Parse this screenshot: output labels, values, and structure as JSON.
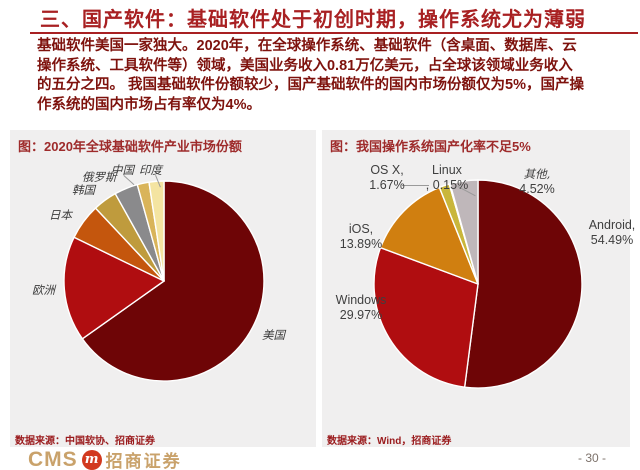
{
  "page": {
    "title": "三、国产软件：基础软件处于初创时期，操作系统尤为薄弱",
    "page_number": "- 30 -"
  },
  "intro": {
    "lines": [
      "基础软件美国一家独大。2020年，在全球操作系统、基础软件（含桌面、数据库、云",
      "操作系统、工具软件等）领域，美国业务收入0.81万亿美元，占全球该领域业务收入",
      "的五分之四。 我国基础软件份额较少，国产基础软件的国内市场份额仅为5%，国产操",
      "作系统的国内市场占有率仅为4%。"
    ]
  },
  "panels": {
    "left": {
      "title": "图：2020年全球基础软件产业市场份额",
      "source": "数据来源：中国软协、招商证券"
    },
    "right": {
      "title": "图：我国操作系统国产化率不足5%",
      "source": "数据来源：Wind，招商证券"
    }
  },
  "footer": {
    "cms": "CMS",
    "logo_glyph": "m",
    "brand": "招商证券"
  },
  "colors": {
    "accent_red": "#A82022",
    "body_text_red": "#7E120D",
    "panel_bg": "#F0EFEF",
    "source_red": "#9A1A1C",
    "brand_gold": "#C9A26B",
    "logo_circle_red": "#D2391F",
    "page_number_gray": "#7d726b"
  },
  "chart_data": [
    {
      "type": "pie",
      "title": "图：2020年全球基础软件产业市场份额",
      "categories": [
        "美国",
        "欧洲",
        "日本",
        "韩国",
        "俄罗斯",
        "中国",
        "印度"
      ],
      "values": [
        65.2,
        17.0,
        5.8,
        3.9,
        3.8,
        1.9,
        2.4
      ],
      "values_note": "percentages not printed on chart; estimated from slice angles",
      "colors": [
        "#6E0506",
        "#B00D10",
        "#C4560D",
        "#BF9B3D",
        "#8A8A8C",
        "#D9B45A",
        "#F4E4A1"
      ],
      "legend_position": "none",
      "labels_on_chart": true,
      "start_angle": "12 o'clock, clockwise"
    },
    {
      "type": "pie",
      "title": "图：我国操作系统国产化率不足5%",
      "categories": [
        "Android",
        "Windows",
        "iOS",
        "OS X",
        "Linux",
        "其他"
      ],
      "values": [
        54.49,
        29.97,
        13.89,
        1.67,
        0.15,
        4.52
      ],
      "point_labels": [
        [
          "Android,",
          "54.49%"
        ],
        [
          "Windows",
          "29.97%"
        ],
        [
          "iOS,",
          "13.89%"
        ],
        [
          "OS X,",
          "1.67%"
        ],
        [
          "Linux",
          ", 0.15%"
        ],
        [
          "其他,",
          "4.52%"
        ]
      ],
      "colors": [
        "#6E0506",
        "#B00D10",
        "#D07F10",
        "#C9B63B",
        "#EDEDED",
        "#BFB7BA"
      ],
      "legend_position": "none",
      "labels_on_chart": true,
      "start_angle": "12 o'clock, clockwise"
    }
  ]
}
